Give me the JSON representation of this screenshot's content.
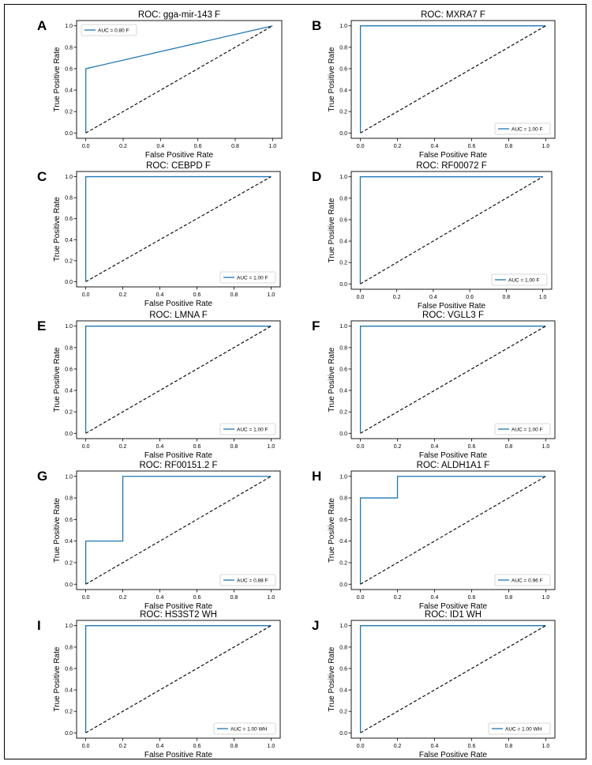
{
  "figure": {
    "colors": {
      "roc_line": "#1f77b4",
      "diagonal": "#000000",
      "text": "#000000",
      "axes": "#000000"
    },
    "axis_labels": {
      "x": "False Positive Rate",
      "y": "True Positive Rate"
    }
  },
  "chart_data": [
    {
      "panel_letter": "A",
      "type": "line",
      "title": "ROC: gga-mir-143 F",
      "xlabel": "False Positive Rate",
      "ylabel": "True Positive Rate",
      "xlim": [
        0,
        1
      ],
      "ylim": [
        0,
        1
      ],
      "xticks": [
        "0.0",
        "0.2",
        "0.4",
        "0.6",
        "0.8",
        "1.0"
      ],
      "yticks": [
        "0.0",
        "0.2",
        "0.4",
        "0.6",
        "0.8",
        "1.0"
      ],
      "legend": "AUC = 0.80 F",
      "legend_position": "top-left",
      "series": [
        {
          "name": "AUC = 0.80 F",
          "x": [
            0,
            0,
            1
          ],
          "y": [
            0,
            0.6,
            1
          ]
        },
        {
          "name": "chance",
          "style": "dashed",
          "x": [
            0,
            1
          ],
          "y": [
            0,
            1
          ]
        }
      ]
    },
    {
      "panel_letter": "B",
      "type": "line",
      "title": "ROC: MXRA7 F",
      "xlabel": "False Positive Rate",
      "ylabel": "True Positive Rate",
      "xlim": [
        0,
        1
      ],
      "ylim": [
        0,
        1
      ],
      "xticks": [
        "0.0",
        "0.2",
        "0.4",
        "0.6",
        "0.8",
        "1.0"
      ],
      "yticks": [
        "0.0",
        "0.2",
        "0.4",
        "0.6",
        "0.8",
        "1.0"
      ],
      "legend": "AUC = 1.00 F",
      "legend_position": "bottom-right",
      "series": [
        {
          "name": "AUC = 1.00 F",
          "x": [
            0,
            0,
            1
          ],
          "y": [
            0,
            1,
            1
          ]
        },
        {
          "name": "chance",
          "style": "dashed",
          "x": [
            0,
            1
          ],
          "y": [
            0,
            1
          ]
        }
      ]
    },
    {
      "panel_letter": "C",
      "type": "line",
      "title": "ROC: CEBPD F",
      "xlabel": "False Positive Rate",
      "ylabel": "True Positive Rate",
      "xlim": [
        0,
        1
      ],
      "ylim": [
        0,
        1
      ],
      "xticks": [
        "0.0",
        "0.2",
        "0.4",
        "0.6",
        "0.8",
        "1.0"
      ],
      "yticks": [
        "0.0",
        "0.2",
        "0.4",
        "0.6",
        "0.8",
        "1.0"
      ],
      "legend": "AUC = 1.00 F",
      "legend_position": "bottom-right",
      "series": [
        {
          "name": "AUC = 1.00 F",
          "x": [
            0,
            0,
            1
          ],
          "y": [
            0,
            1,
            1
          ]
        },
        {
          "name": "chance",
          "style": "dashed",
          "x": [
            0,
            1
          ],
          "y": [
            0,
            1
          ]
        }
      ]
    },
    {
      "panel_letter": "D",
      "type": "line",
      "title": "ROC: RF00072 F",
      "xlabel": "False Positive Rate",
      "ylabel": "True Positive Rate",
      "xlim": [
        0,
        1
      ],
      "ylim": [
        0,
        1
      ],
      "xticks": [
        "0.0",
        "0.2",
        "0.4",
        "0.6",
        "0.8",
        "1.0"
      ],
      "yticks": [
        "0.0",
        "0.2",
        "0.4",
        "0.6",
        "0.8",
        "1.0"
      ],
      "legend": "AUC = 1.00 F",
      "legend_position": "bottom-right",
      "series": [
        {
          "name": "AUC = 1.00 F",
          "x": [
            0,
            0,
            1
          ],
          "y": [
            0,
            1,
            1
          ]
        },
        {
          "name": "chance",
          "style": "dashed",
          "x": [
            0,
            1
          ],
          "y": [
            0,
            1
          ]
        }
      ]
    },
    {
      "panel_letter": "E",
      "type": "line",
      "title": "ROC: LMNA F",
      "xlabel": "False Positive Rate",
      "ylabel": "True Positive Rate",
      "xlim": [
        0,
        1
      ],
      "ylim": [
        0,
        1
      ],
      "xticks": [
        "0.0",
        "0.2",
        "0.4",
        "0.6",
        "0.8",
        "1.0"
      ],
      "yticks": [
        "0.0",
        "0.2",
        "0.4",
        "0.6",
        "0.8",
        "1.0"
      ],
      "legend": "AUC = 1.00 F",
      "legend_position": "bottom-right",
      "series": [
        {
          "name": "AUC = 1.00 F",
          "x": [
            0,
            0,
            1
          ],
          "y": [
            0,
            1,
            1
          ]
        },
        {
          "name": "chance",
          "style": "dashed",
          "x": [
            0,
            1
          ],
          "y": [
            0,
            1
          ]
        }
      ]
    },
    {
      "panel_letter": "F",
      "type": "line",
      "title": "ROC: VGLL3 F",
      "xlabel": "False Positive Rate",
      "ylabel": "True Positive Rate",
      "xlim": [
        0,
        1
      ],
      "ylim": [
        0,
        1
      ],
      "xticks": [
        "0.0",
        "0.2",
        "0.4",
        "0.6",
        "0.8",
        "1.0"
      ],
      "yticks": [
        "0.0",
        "0.2",
        "0.4",
        "0.6",
        "0.8",
        "1.0"
      ],
      "legend": "AUC = 1.00 F",
      "legend_position": "bottom-right",
      "series": [
        {
          "name": "AUC = 1.00 F",
          "x": [
            0,
            0,
            1
          ],
          "y": [
            0,
            1,
            1
          ]
        },
        {
          "name": "chance",
          "style": "dashed",
          "x": [
            0,
            1
          ],
          "y": [
            0,
            1
          ]
        }
      ]
    },
    {
      "panel_letter": "G",
      "type": "line",
      "title": "ROC: RF00151.2 F",
      "xlabel": "False Positive Rate",
      "ylabel": "True Positive Rate",
      "xlim": [
        0,
        1
      ],
      "ylim": [
        0,
        1
      ],
      "xticks": [
        "0.0",
        "0.2",
        "0.4",
        "0.6",
        "0.8",
        "1.0"
      ],
      "yticks": [
        "0.0",
        "0.2",
        "0.4",
        "0.6",
        "0.8",
        "1.0"
      ],
      "legend": "AUC = 0.88 F",
      "legend_position": "bottom-right",
      "series": [
        {
          "name": "AUC = 0.88 F",
          "x": [
            0,
            0,
            0.2,
            0.2,
            1
          ],
          "y": [
            0,
            0.4,
            0.4,
            1,
            1
          ]
        },
        {
          "name": "chance",
          "style": "dashed",
          "x": [
            0,
            1
          ],
          "y": [
            0,
            1
          ]
        }
      ]
    },
    {
      "panel_letter": "H",
      "type": "line",
      "title": "ROC: ALDH1A1 F",
      "xlabel": "False Positive Rate",
      "ylabel": "True Positive Rate",
      "xlim": [
        0,
        1
      ],
      "ylim": [
        0,
        1
      ],
      "xticks": [
        "0.0",
        "0.2",
        "0.4",
        "0.6",
        "0.8",
        "1.0"
      ],
      "yticks": [
        "0.0",
        "0.2",
        "0.4",
        "0.6",
        "0.8",
        "1.0"
      ],
      "legend": "AUC = 0.96 F",
      "legend_position": "bottom-right",
      "series": [
        {
          "name": "AUC = 0.96 F",
          "x": [
            0,
            0,
            0.2,
            0.2,
            1
          ],
          "y": [
            0,
            0.8,
            0.8,
            1,
            1
          ]
        },
        {
          "name": "chance",
          "style": "dashed",
          "x": [
            0,
            1
          ],
          "y": [
            0,
            1
          ]
        }
      ]
    },
    {
      "panel_letter": "I",
      "type": "line",
      "title": "ROC: HS3ST2 WH",
      "xlabel": "False Positive Rate",
      "ylabel": "True Positive Rate",
      "xlim": [
        0,
        1
      ],
      "ylim": [
        0,
        1
      ],
      "xticks": [
        "0.0",
        "0.2",
        "0.4",
        "0.6",
        "0.8",
        "1.0"
      ],
      "yticks": [
        "0.0",
        "0.2",
        "0.4",
        "0.6",
        "0.8",
        "1.0"
      ],
      "legend": "AUC = 1.00 WH",
      "legend_position": "bottom-right",
      "series": [
        {
          "name": "AUC = 1.00 WH",
          "x": [
            0,
            0,
            1
          ],
          "y": [
            0,
            1,
            1
          ]
        },
        {
          "name": "chance",
          "style": "dashed",
          "x": [
            0,
            1
          ],
          "y": [
            0,
            1
          ]
        }
      ]
    },
    {
      "panel_letter": "J",
      "type": "line",
      "title": "ROC: ID1 WH",
      "xlabel": "False Positive Rate",
      "ylabel": "True Positive Rate",
      "xlim": [
        0,
        1
      ],
      "ylim": [
        0,
        1
      ],
      "xticks": [
        "0.0",
        "0.2",
        "0.4",
        "0.6",
        "0.8",
        "1.0"
      ],
      "yticks": [
        "0.0",
        "0.2",
        "0.4",
        "0.6",
        "0.8",
        "1.0"
      ],
      "legend": "AUC = 1.00 WH",
      "legend_position": "bottom-right",
      "series": [
        {
          "name": "AUC = 1.00 WH",
          "x": [
            0,
            0,
            1
          ],
          "y": [
            0,
            1,
            1
          ]
        },
        {
          "name": "chance",
          "style": "dashed",
          "x": [
            0,
            1
          ],
          "y": [
            0,
            1
          ]
        }
      ]
    }
  ]
}
